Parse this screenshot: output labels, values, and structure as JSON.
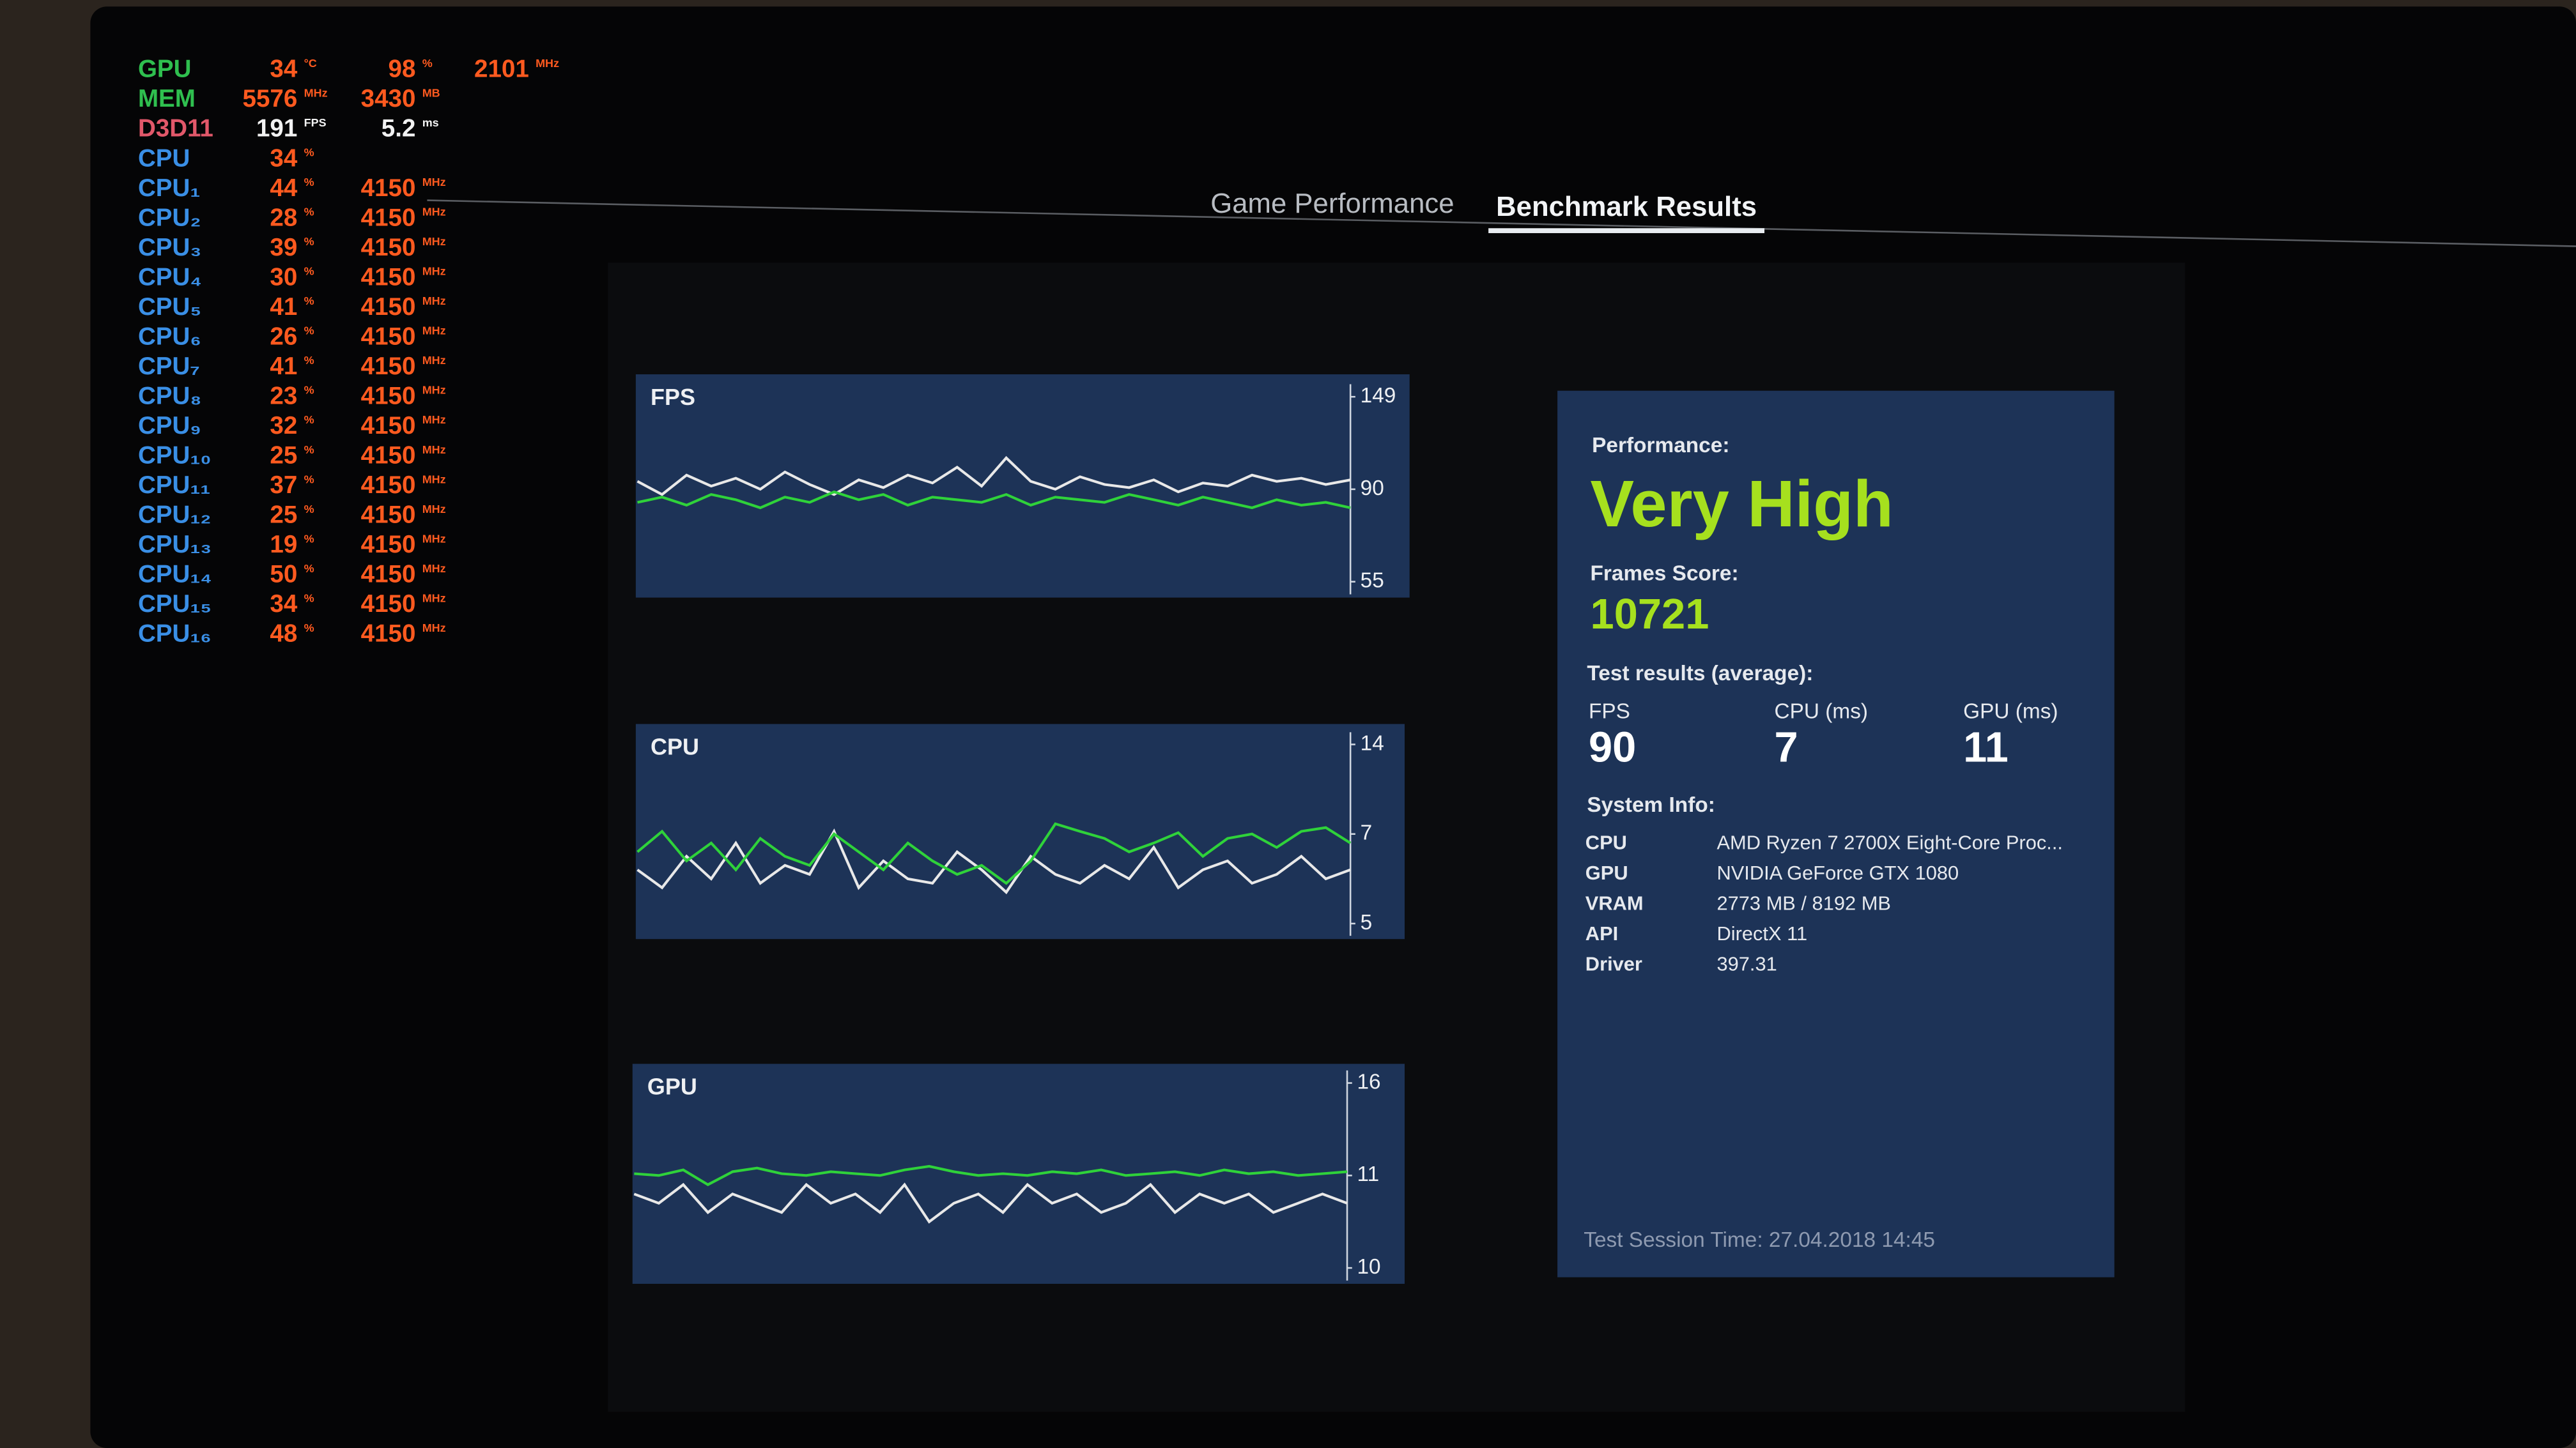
{
  "overlay": [
    {
      "label": "GPU",
      "color": "#2fbf4f",
      "value_color": "#ff5a1f",
      "cells": [
        {
          "value": 34,
          "unit": "°C"
        },
        {
          "value": 98,
          "unit": "%"
        },
        {
          "value": 2101,
          "unit": "MHz"
        }
      ]
    },
    {
      "label": "MEM",
      "color": "#2fbf4f",
      "value_color": "#ff5a1f",
      "cells": [
        {
          "value": 5576,
          "unit": "MHz"
        },
        {
          "value": 3430,
          "unit": "MB"
        }
      ]
    },
    {
      "label": "D3D11",
      "color": "#e2586a",
      "value_color": "#f2f2f2",
      "cells": [
        {
          "value": 191,
          "unit": "FPS"
        },
        {
          "value": 5.2,
          "unit": "ms"
        }
      ]
    },
    {
      "label": "CPU",
      "color": "#3a8fe6",
      "value_color": "#ff5a1f",
      "cells": [
        {
          "value": 34,
          "unit": "%"
        }
      ]
    },
    {
      "label": "CPU₁",
      "color": "#3a8fe6",
      "value_color": "#ff5a1f",
      "cells": [
        {
          "value": 44,
          "unit": "%"
        },
        {
          "value": 4150,
          "unit": "MHz"
        }
      ]
    },
    {
      "label": "CPU₂",
      "color": "#3a8fe6",
      "value_color": "#ff5a1f",
      "cells": [
        {
          "value": 28,
          "unit": "%"
        },
        {
          "value": 4150,
          "unit": "MHz"
        }
      ]
    },
    {
      "label": "CPU₃",
      "color": "#3a8fe6",
      "value_color": "#ff5a1f",
      "cells": [
        {
          "value": 39,
          "unit": "%"
        },
        {
          "value": 4150,
          "unit": "MHz"
        }
      ]
    },
    {
      "label": "CPU₄",
      "color": "#3a8fe6",
      "value_color": "#ff5a1f",
      "cells": [
        {
          "value": 30,
          "unit": "%"
        },
        {
          "value": 4150,
          "unit": "MHz"
        }
      ]
    },
    {
      "label": "CPU₅",
      "color": "#3a8fe6",
      "value_color": "#ff5a1f",
      "cells": [
        {
          "value": 41,
          "unit": "%"
        },
        {
          "value": 4150,
          "unit": "MHz"
        }
      ]
    },
    {
      "label": "CPU₆",
      "color": "#3a8fe6",
      "value_color": "#ff5a1f",
      "cells": [
        {
          "value": 26,
          "unit": "%"
        },
        {
          "value": 4150,
          "unit": "MHz"
        }
      ]
    },
    {
      "label": "CPU₇",
      "color": "#3a8fe6",
      "value_color": "#ff5a1f",
      "cells": [
        {
          "value": 41,
          "unit": "%"
        },
        {
          "value": 4150,
          "unit": "MHz"
        }
      ]
    },
    {
      "label": "CPU₈",
      "color": "#3a8fe6",
      "value_color": "#ff5a1f",
      "cells": [
        {
          "value": 23,
          "unit": "%"
        },
        {
          "value": 4150,
          "unit": "MHz"
        }
      ]
    },
    {
      "label": "CPU₉",
      "color": "#3a8fe6",
      "value_color": "#ff5a1f",
      "cells": [
        {
          "value": 32,
          "unit": "%"
        },
        {
          "value": 4150,
          "unit": "MHz"
        }
      ]
    },
    {
      "label": "CPU₁₀",
      "color": "#3a8fe6",
      "value_color": "#ff5a1f",
      "cells": [
        {
          "value": 25,
          "unit": "%"
        },
        {
          "value": 4150,
          "unit": "MHz"
        }
      ]
    },
    {
      "label": "CPU₁₁",
      "color": "#3a8fe6",
      "value_color": "#ff5a1f",
      "cells": [
        {
          "value": 37,
          "unit": "%"
        },
        {
          "value": 4150,
          "unit": "MHz"
        }
      ]
    },
    {
      "label": "CPU₁₂",
      "color": "#3a8fe6",
      "value_color": "#ff5a1f",
      "cells": [
        {
          "value": 25,
          "unit": "%"
        },
        {
          "value": 4150,
          "unit": "MHz"
        }
      ]
    },
    {
      "label": "CPU₁₃",
      "color": "#3a8fe6",
      "value_color": "#ff5a1f",
      "cells": [
        {
          "value": 19,
          "unit": "%"
        },
        {
          "value": 4150,
          "unit": "MHz"
        }
      ]
    },
    {
      "label": "CPU₁₄",
      "color": "#3a8fe6",
      "value_color": "#ff5a1f",
      "cells": [
        {
          "value": 50,
          "unit": "%"
        },
        {
          "value": 4150,
          "unit": "MHz"
        }
      ]
    },
    {
      "label": "CPU₁₅",
      "color": "#3a8fe6",
      "value_color": "#ff5a1f",
      "cells": [
        {
          "value": 34,
          "unit": "%"
        },
        {
          "value": 4150,
          "unit": "MHz"
        }
      ]
    },
    {
      "label": "CPU₁₆",
      "color": "#3a8fe6",
      "value_color": "#ff5a1f",
      "cells": [
        {
          "value": 48,
          "unit": "%"
        },
        {
          "value": 4150,
          "unit": "MHz"
        }
      ]
    }
  ],
  "tabs": [
    "Game Performance",
    "Benchmark Results"
  ],
  "chart_data": [
    {
      "type": "line",
      "title": "FPS",
      "yticks": [
        55,
        90,
        149
      ],
      "series": [
        {
          "color": "#e8e8e8",
          "values": [
            95,
            88,
            99,
            92,
            97,
            90,
            101,
            93,
            88,
            96,
            91,
            99,
            94,
            104,
            92,
            110,
            95,
            90,
            98,
            93,
            91,
            96,
            89,
            94,
            92,
            99,
            95,
            97,
            93,
            96
          ]
        },
        {
          "color": "#2fd23a",
          "values": [
            85,
            87,
            84,
            88,
            86,
            83,
            87,
            85,
            89,
            86,
            88,
            84,
            87,
            86,
            85,
            88,
            84,
            87,
            86,
            85,
            88,
            86,
            84,
            87,
            85,
            83,
            86,
            84,
            85,
            83
          ]
        }
      ]
    },
    {
      "type": "line",
      "title": "CPU",
      "yticks": [
        5,
        7,
        14
      ],
      "series": [
        {
          "color": "#e8e8e8",
          "values": [
            6.2,
            5.8,
            6.5,
            6.0,
            6.8,
            5.9,
            6.3,
            6.1,
            7.2,
            5.8,
            6.4,
            6.0,
            5.9,
            6.6,
            6.2,
            5.7,
            6.5,
            6.1,
            5.9,
            6.3,
            6.0,
            6.7,
            5.8,
            6.2,
            6.4,
            5.9,
            6.1,
            6.5,
            6.0,
            6.2
          ]
        },
        {
          "color": "#2fd23a",
          "values": [
            6.6,
            7.2,
            6.4,
            6.8,
            6.2,
            6.9,
            6.5,
            6.3,
            7.0,
            6.6,
            6.2,
            6.8,
            6.4,
            6.1,
            6.3,
            5.9,
            6.4,
            7.8,
            7.2,
            6.9,
            6.6,
            6.8,
            7.1,
            6.5,
            6.9,
            7.0,
            6.7,
            7.2,
            7.5,
            6.8
          ]
        }
      ]
    },
    {
      "type": "line",
      "title": "GPU",
      "yticks": [
        10,
        11,
        16
      ],
      "series": [
        {
          "color": "#e8e8e8",
          "values": [
            10.8,
            10.7,
            10.9,
            10.6,
            10.8,
            10.7,
            10.6,
            10.9,
            10.7,
            10.8,
            10.6,
            10.9,
            10.5,
            10.7,
            10.8,
            10.6,
            10.9,
            10.7,
            10.8,
            10.6,
            10.7,
            10.9,
            10.6,
            10.8,
            10.7,
            10.8,
            10.6,
            10.7,
            10.8,
            10.7
          ]
        },
        {
          "color": "#2fd23a",
          "values": [
            11.1,
            11.0,
            11.3,
            10.9,
            11.2,
            11.4,
            11.1,
            11.0,
            11.2,
            11.1,
            11.0,
            11.3,
            11.5,
            11.2,
            11.0,
            11.1,
            11.0,
            11.2,
            11.1,
            11.3,
            11.0,
            11.1,
            11.2,
            11.0,
            11.3,
            11.1,
            11.2,
            11.0,
            11.1,
            11.2
          ]
        }
      ]
    }
  ],
  "summary": {
    "performance_label": "Performance:",
    "performance": "Very High",
    "score_label": "Frames Score:",
    "score": 10721,
    "results_label": "Test results (average):",
    "results": [
      {
        "label": "FPS",
        "value": 90
      },
      {
        "label": "CPU (ms)",
        "value": 7
      },
      {
        "label": "GPU (ms)",
        "value": 11
      }
    ],
    "system_label": "System Info:",
    "system": [
      [
        "CPU",
        "AMD Ryzen 7 2700X Eight-Core Proc..."
      ],
      [
        "GPU",
        "NVIDIA GeForce GTX 1080"
      ],
      [
        "VRAM",
        "2773 MB / 8192 MB"
      ],
      [
        "API",
        "DirectX 11"
      ],
      [
        "Driver",
        "397.31"
      ]
    ],
    "session": "Test Session Time: 27.04.2018 14:45"
  }
}
